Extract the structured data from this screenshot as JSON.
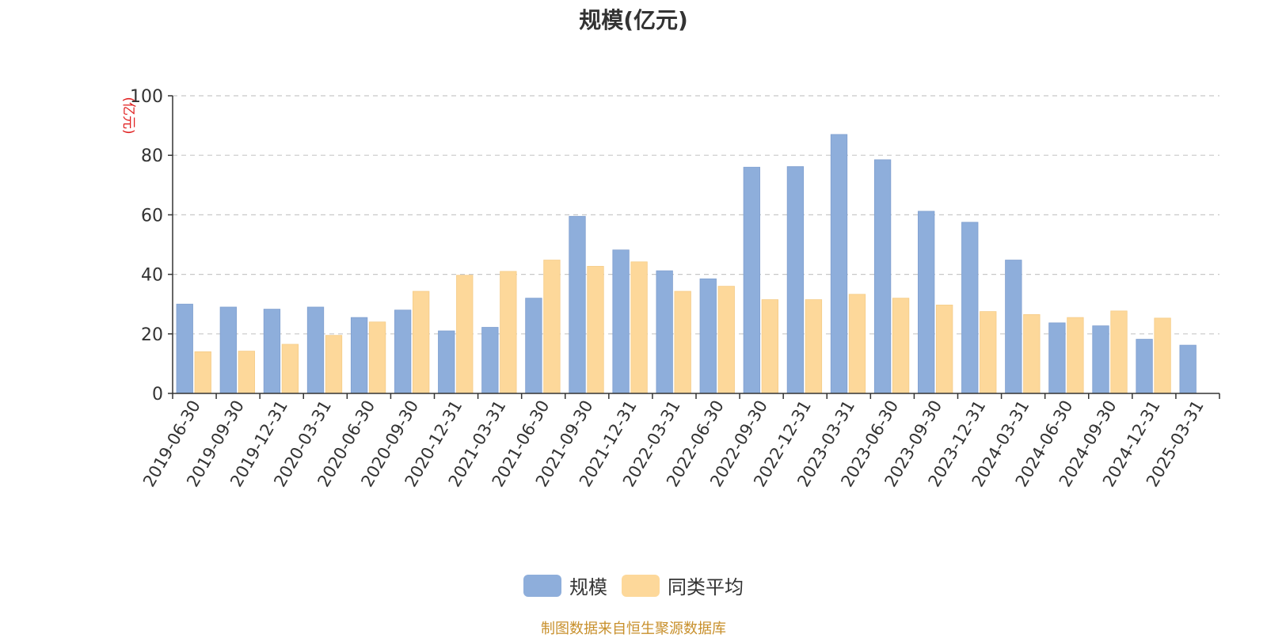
{
  "chart_data": {
    "type": "bar",
    "title": "规模(亿元)",
    "ylabel": "(亿元)",
    "ylim": [
      0,
      100
    ],
    "yticks": [
      0,
      20,
      40,
      60,
      80,
      100
    ],
    "grid": true,
    "legend_position": "bottom",
    "categories": [
      "2019-06-30",
      "2019-09-30",
      "2019-12-31",
      "2020-03-31",
      "2020-06-30",
      "2020-09-30",
      "2020-12-31",
      "2021-03-31",
      "2021-06-30",
      "2021-09-30",
      "2021-12-31",
      "2022-03-31",
      "2022-06-30",
      "2022-09-30",
      "2022-12-31",
      "2023-03-31",
      "2023-06-30",
      "2023-09-30",
      "2023-12-31",
      "2024-03-31",
      "2024-06-30",
      "2024-09-30",
      "2024-12-31",
      "2025-03-31"
    ],
    "series": [
      {
        "name": "规模",
        "color": "#8eaedb",
        "values": [
          30,
          29,
          28.3,
          29,
          25.5,
          28,
          21,
          22.2,
          32,
          59.5,
          48.2,
          41.2,
          38.5,
          76,
          76.2,
          87,
          78.5,
          61.2,
          57.5,
          44.8,
          23.7,
          22.7,
          18.2,
          16.2
        ]
      },
      {
        "name": "同类平均",
        "color": "#fdd89a",
        "values": [
          14,
          14.2,
          16.5,
          19.5,
          24,
          34.3,
          39.7,
          41,
          44.8,
          42.7,
          44.2,
          34.3,
          36,
          31.5,
          31.5,
          33.3,
          32,
          29.7,
          27.5,
          26.5,
          25.5,
          27.7,
          25.3,
          null
        ]
      }
    ]
  },
  "source_note": "制图数据来自恒生聚源数据库"
}
